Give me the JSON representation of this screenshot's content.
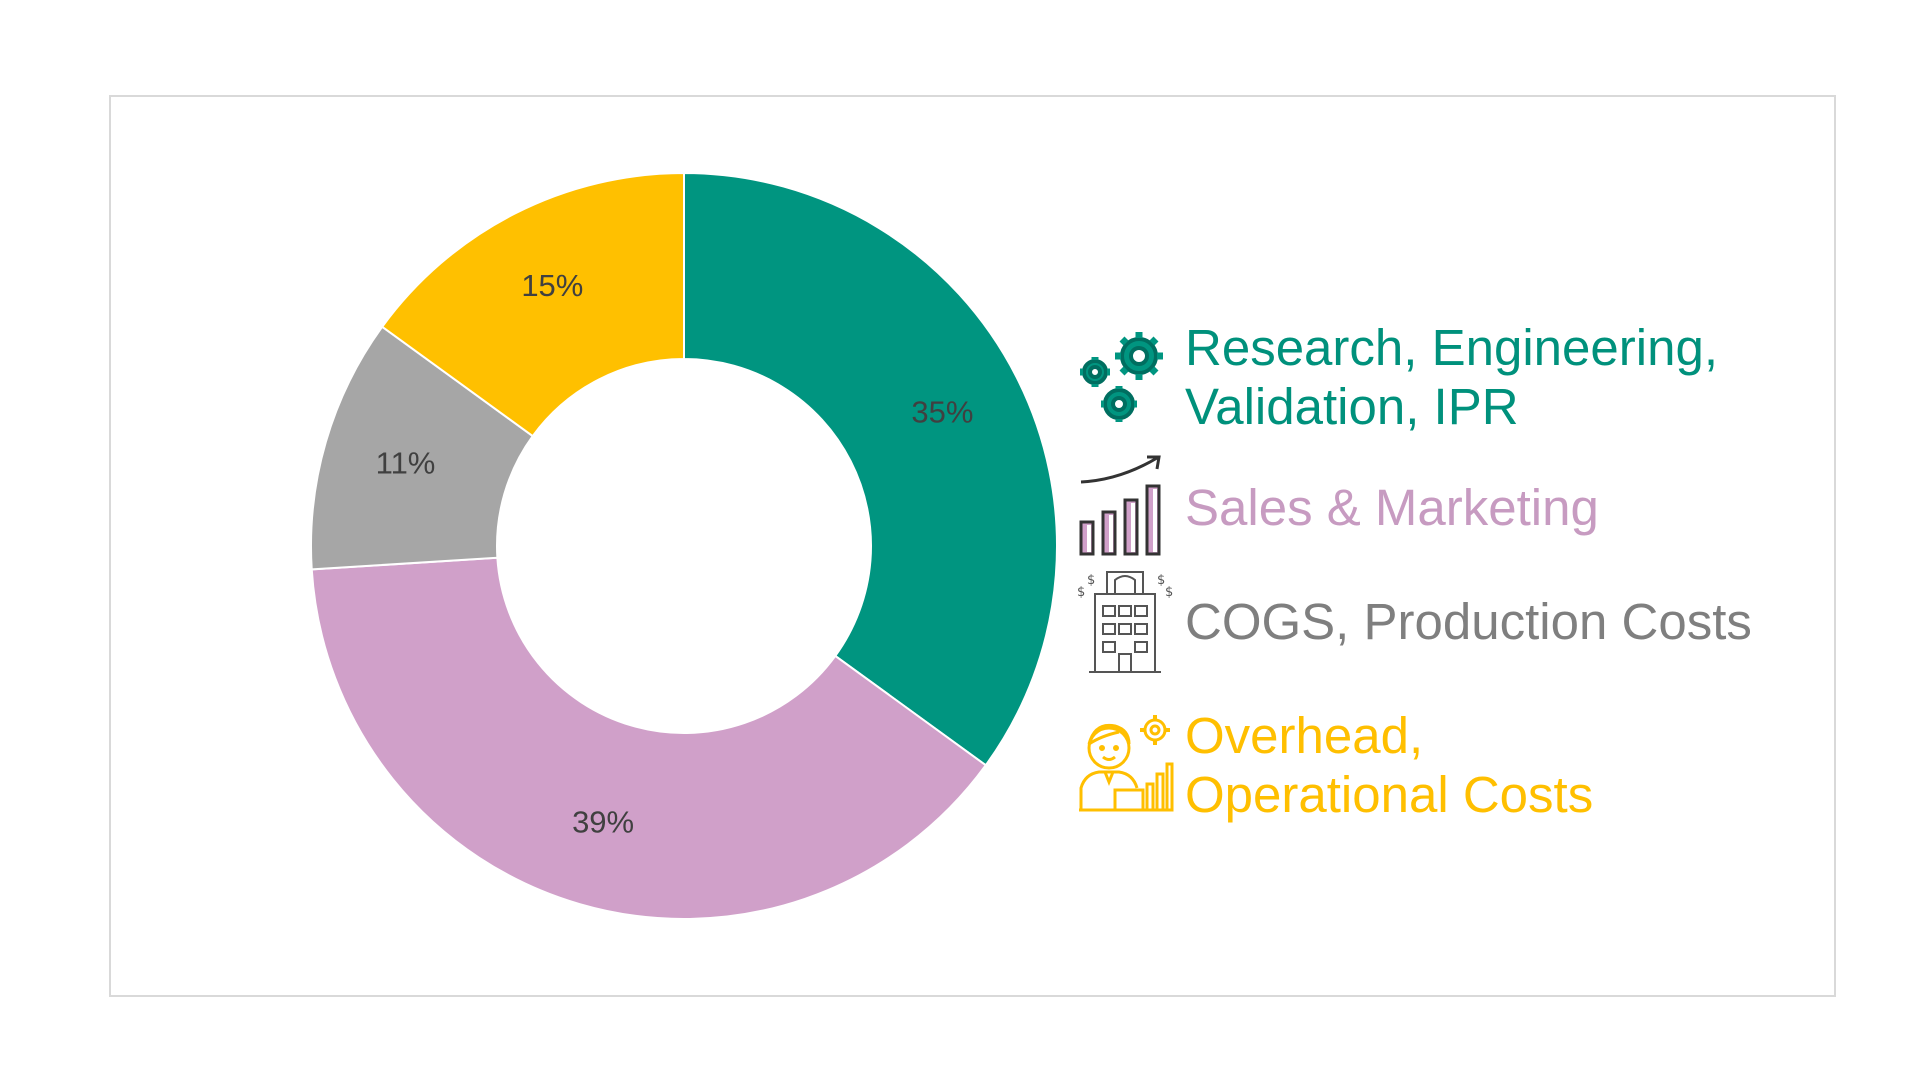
{
  "chart_data": {
    "type": "pie",
    "donut": true,
    "categories": [
      "Research, Engineering,\nValidation, IPR",
      "Sales & Marketing",
      "COGS, Production Costs",
      "Overhead,\nOperational Costs"
    ],
    "values": [
      35,
      39,
      11,
      15
    ],
    "labels": [
      "35%",
      "39%",
      "11%",
      "15%"
    ],
    "colors": [
      "#009580",
      "#d0a0c9",
      "#a6a6a6",
      "#ffc000"
    ],
    "legend_text_colors": [
      "#00917c",
      "#c79bc1",
      "#7f7f7f",
      "#ffbf00"
    ],
    "legend_icons": [
      "gears-icon",
      "growth-chart-icon",
      "factory-building-icon",
      "manager-icon"
    ],
    "legend_position": "right",
    "start_angle_deg": 0,
    "direction": "clockwise"
  }
}
